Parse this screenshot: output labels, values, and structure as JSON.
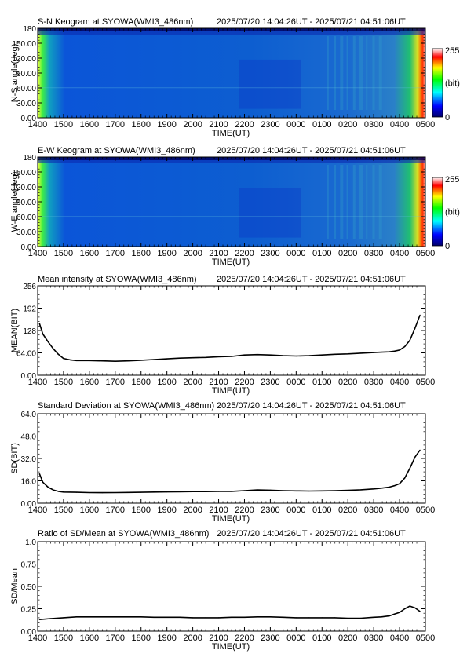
{
  "time_range": "2025/07/20 14:04:26UT - 2025/07/21 04:51:06UT",
  "xlabel": "TIME(UT)",
  "xticks": [
    "1400",
    "1500",
    "1600",
    "1700",
    "1800",
    "1900",
    "2000",
    "2100",
    "2200",
    "2300",
    "0000",
    "0100",
    "0200",
    "0300",
    "0400",
    "0500"
  ],
  "chart_data": [
    {
      "type": "heatmap",
      "title": "S-N Keogram at SYOWA(WMI3_486nm)",
      "time_range": "2025/07/20 14:04:26UT - 2025/07/21 04:51:06UT",
      "xlabel": "TIME(UT)",
      "ylabel": "N-S angle(deg)",
      "xlim": [
        "14:00",
        "05:00"
      ],
      "ylim": [
        0,
        180
      ],
      "yticks": [
        "0.00",
        "30.00",
        "60.00",
        "90.00",
        "120.00",
        "150.00",
        "180"
      ],
      "colorbar": {
        "min": 0,
        "max": 255,
        "label": "(bit)",
        "ticks": [
          "0",
          "(bit)",
          "255"
        ]
      },
      "colormap": [
        "#00006a",
        "#0000ff",
        "#00ffff",
        "#00ff00",
        "#ffff00",
        "#ff0000",
        "#ffffff"
      ]
    },
    {
      "type": "heatmap",
      "title": "E-W Keogram at SYOWA(WMI3_486nm)",
      "time_range": "2025/07/20 14:04:26UT - 2025/07/21 04:51:06UT",
      "xlabel": "TIME(UT)",
      "ylabel": "W-E angle(deg)",
      "xlim": [
        "14:00",
        "05:00"
      ],
      "ylim": [
        0,
        180
      ],
      "yticks": [
        "0.00",
        "30.00",
        "60.00",
        "90.00",
        "120.00",
        "150.00",
        "180"
      ],
      "colorbar": {
        "min": 0,
        "max": 255,
        "label": "(bit)",
        "ticks": [
          "0",
          "(bit)",
          "255"
        ]
      },
      "colormap": [
        "#00006a",
        "#0000ff",
        "#00ffff",
        "#00ff00",
        "#ffff00",
        "#ff0000",
        "#ffffff"
      ]
    },
    {
      "type": "line",
      "title": "Mean intensity at SYOWA(WMI3_486nm)",
      "time_range": "2025/07/20 14:04:26UT - 2025/07/21 04:51:06UT",
      "xlabel": "TIME(UT)",
      "ylabel": "MEAN(BIT)",
      "ylim": [
        0,
        256
      ],
      "yticks": [
        "0.00",
        "64.00",
        "128",
        "192",
        "256"
      ],
      "x_hours_since_1400": [
        0.07,
        0.2,
        0.4,
        0.6,
        0.8,
        1.0,
        1.25,
        1.5,
        2,
        2.5,
        3,
        3.5,
        4,
        4.5,
        5,
        5.5,
        6,
        6.5,
        7,
        7.5,
        8,
        8.5,
        9,
        9.5,
        10,
        10.5,
        11,
        11.5,
        12,
        12.5,
        13,
        13.3,
        13.6,
        13.8,
        14.0,
        14.2,
        14.4,
        14.6,
        14.79
      ],
      "values": [
        148,
        118,
        96,
        76,
        60,
        48,
        44,
        42,
        42,
        41,
        40,
        41,
        43,
        45,
        47,
        49,
        50,
        51,
        53,
        54,
        58,
        59,
        58,
        56,
        55,
        56,
        58,
        60,
        61,
        63,
        65,
        66,
        67,
        69,
        72,
        82,
        100,
        135,
        172
      ]
    },
    {
      "type": "line",
      "title": "Standard Deviation at SYOWA(WMI3_486nm)",
      "time_range": "2025/07/20 14:04:26UT - 2025/07/21 04:51:06UT",
      "xlabel": "TIME(UT)",
      "ylabel": "SD(BIT)",
      "ylim": [
        0,
        64
      ],
      "yticks": [
        "0.00",
        "16.0",
        "32.0",
        "48.0",
        "64.0"
      ],
      "x_hours_since_1400": [
        0.07,
        0.2,
        0.4,
        0.6,
        0.8,
        1.0,
        1.5,
        2,
        2.5,
        3,
        3.5,
        4,
        4.5,
        5,
        5.5,
        6,
        6.5,
        7,
        7.5,
        8,
        8.5,
        9,
        9.5,
        10,
        10.5,
        11,
        11.5,
        12,
        12.5,
        13,
        13.3,
        13.6,
        13.8,
        14.0,
        14.2,
        14.4,
        14.6,
        14.79
      ],
      "values": [
        21,
        15,
        11.5,
        9.5,
        8.5,
        8.0,
        7.8,
        7.6,
        7.5,
        7.6,
        7.7,
        7.8,
        8.0,
        8.1,
        8.2,
        8.3,
        8.3,
        8.4,
        8.5,
        9.0,
        9.5,
        9.3,
        9.0,
        8.8,
        8.7,
        8.8,
        8.9,
        9.2,
        9.6,
        10.2,
        10.8,
        11.5,
        12.5,
        14,
        18,
        25,
        33,
        38
      ]
    },
    {
      "type": "line",
      "title": "Ratio of SD/Mean at SYOWA(WMI3_486nm)",
      "time_range": "2025/07/20 14:04:26UT - 2025/07/21 04:51:06UT",
      "xlabel": "TIME(UT)",
      "ylabel": "SD/Mean",
      "ylim": [
        0,
        1.0
      ],
      "yticks": [
        "0.00",
        "0.25",
        "0.50",
        "0.75",
        "1.0"
      ],
      "x_hours_since_1400": [
        0.07,
        0.5,
        1.0,
        1.5,
        2,
        2.5,
        3,
        3.5,
        4,
        4.5,
        5,
        5.5,
        6,
        6.5,
        7,
        7.5,
        8,
        8.5,
        9,
        9.5,
        10,
        10.5,
        11,
        11.5,
        12,
        12.5,
        13,
        13.3,
        13.6,
        13.8,
        14.0,
        14.2,
        14.4,
        14.6,
        14.79
      ],
      "values": [
        0.13,
        0.14,
        0.15,
        0.16,
        0.16,
        0.16,
        0.16,
        0.16,
        0.16,
        0.155,
        0.155,
        0.155,
        0.15,
        0.15,
        0.15,
        0.155,
        0.155,
        0.16,
        0.16,
        0.155,
        0.15,
        0.15,
        0.15,
        0.15,
        0.145,
        0.145,
        0.155,
        0.16,
        0.17,
        0.19,
        0.21,
        0.25,
        0.28,
        0.26,
        0.22
      ]
    }
  ]
}
